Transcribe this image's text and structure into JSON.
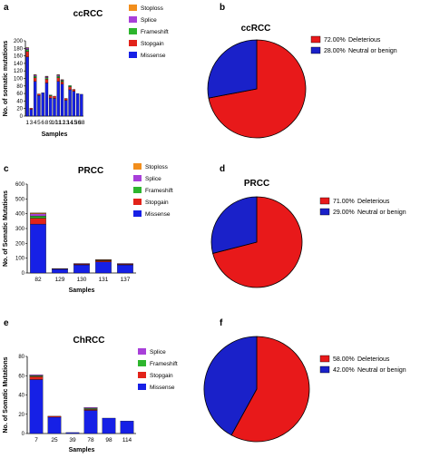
{
  "colors": {
    "Stoploss": "#f28e1c",
    "Splice": "#a83fd9",
    "Frameshift": "#2db52d",
    "Stopgain": "#e2231a",
    "Missense": "#1620e6",
    "Deleterious": "#e8191a",
    "Neutral or benign": "#1a21c9"
  },
  "chart_data": [
    {
      "type": "bar",
      "panel": "a",
      "title": "ccRCC",
      "xlabel": "Samples",
      "ylabel": "No. of somatic mutations",
      "ylim": [
        0,
        200
      ],
      "yticks": [
        0,
        20,
        40,
        60,
        80,
        100,
        120,
        140,
        160,
        180,
        200
      ],
      "categories": [
        "1",
        "3",
        "4",
        "5",
        "6",
        "8",
        "9",
        "10",
        "11",
        "12",
        "13",
        "14",
        "15",
        "36",
        "38"
      ],
      "legend": [
        "Stoploss",
        "Splice",
        "Frameshift",
        "Stopgain",
        "Missense"
      ],
      "series": [
        {
          "name": "Missense",
          "values": [
            157,
            18,
            92,
            55,
            62,
            88,
            48,
            47,
            92,
            85,
            42,
            70,
            66,
            60,
            58
          ]
        },
        {
          "name": "Stopgain",
          "values": [
            15,
            3,
            10,
            4,
            0,
            10,
            6,
            6,
            10,
            6,
            5,
            8,
            5,
            0,
            0
          ]
        },
        {
          "name": "Frameshift",
          "values": [
            5,
            0,
            4,
            0,
            0,
            4,
            2,
            0,
            4,
            3,
            0,
            3,
            0,
            0,
            0
          ]
        },
        {
          "name": "Splice",
          "values": [
            4,
            0,
            3,
            0,
            0,
            3,
            0,
            0,
            3,
            2,
            0,
            0,
            0,
            0,
            0
          ]
        },
        {
          "name": "Stoploss",
          "values": [
            1,
            0,
            1,
            0,
            0,
            1,
            0,
            0,
            1,
            1,
            0,
            0,
            0,
            0,
            0
          ]
        }
      ]
    },
    {
      "type": "pie",
      "panel": "b",
      "title": "ccRCC",
      "slices": [
        {
          "label": "Deleterious",
          "value": 72.0,
          "display": "72.00%"
        },
        {
          "label": "Neutral or benign",
          "value": 28.0,
          "display": "28.00%"
        }
      ]
    },
    {
      "type": "bar",
      "panel": "c",
      "title": "PRCC",
      "xlabel": "Samples",
      "ylabel": "No. of Somatic Mutations",
      "ylim": [
        0,
        600
      ],
      "yticks": [
        0,
        100,
        200,
        300,
        400,
        500,
        600
      ],
      "categories": [
        "82",
        "129",
        "130",
        "131",
        "137"
      ],
      "legend": [
        "Stoploss",
        "Splice",
        "Frameshift",
        "Stopgain",
        "Missense"
      ],
      "series": [
        {
          "name": "Missense",
          "values": [
            330,
            25,
            55,
            75,
            55
          ]
        },
        {
          "name": "Stopgain",
          "values": [
            40,
            3,
            6,
            8,
            5
          ]
        },
        {
          "name": "Frameshift",
          "values": [
            15,
            1,
            2,
            3,
            2
          ]
        },
        {
          "name": "Splice",
          "values": [
            15,
            1,
            1,
            3,
            2
          ]
        },
        {
          "name": "Stoploss",
          "values": [
            6,
            0,
            0,
            1,
            0
          ]
        }
      ]
    },
    {
      "type": "pie",
      "panel": "d",
      "title": "PRCC",
      "slices": [
        {
          "label": "Deleterious",
          "value": 71.0,
          "display": "71.00%"
        },
        {
          "label": "Neutral or benign",
          "value": 29.0,
          "display": "29.00%"
        }
      ]
    },
    {
      "type": "bar",
      "panel": "e",
      "title": "ChRCC",
      "xlabel": "Samples",
      "ylabel": "No. of Somatic Mutations",
      "ylim": [
        0,
        80
      ],
      "yticks": [
        0,
        20,
        40,
        60,
        80
      ],
      "categories": [
        "7",
        "25",
        "39",
        "78",
        "98",
        "114"
      ],
      "legend": [
        "Splice",
        "Frameshift",
        "Stopgain",
        "Missense"
      ],
      "series": [
        {
          "name": "Missense",
          "values": [
            56,
            17,
            1,
            24,
            16,
            13
          ]
        },
        {
          "name": "Stopgain",
          "values": [
            3,
            1,
            0,
            1,
            0,
            0
          ]
        },
        {
          "name": "Frameshift",
          "values": [
            1,
            0,
            0,
            1,
            0,
            0
          ]
        },
        {
          "name": "Splice",
          "values": [
            1,
            0,
            0,
            1,
            0,
            0
          ]
        }
      ]
    },
    {
      "type": "pie",
      "panel": "f",
      "title": "ChRCC",
      "slices": [
        {
          "label": "Deleterious",
          "value": 58.0,
          "display": "58.00%"
        },
        {
          "label": "Neutral or benign",
          "value": 42.0,
          "display": "42.00%"
        }
      ]
    }
  ]
}
